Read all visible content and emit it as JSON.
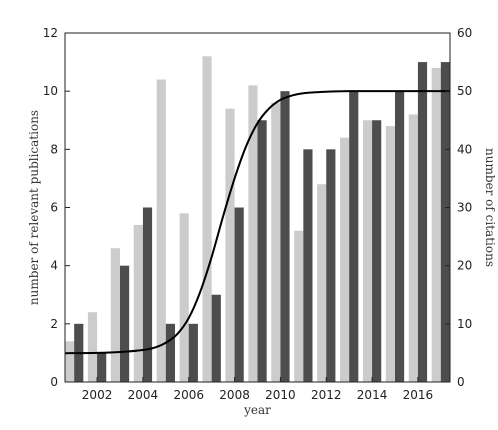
{
  "chart_data": {
    "type": "bar",
    "xlabel": "year",
    "ylabel_left": "number of relevant publications",
    "ylabel_right": "number of citations",
    "ylim_left": [
      0,
      12
    ],
    "ylim_right": [
      0,
      60
    ],
    "xlim": [
      2000.6,
      2017.4
    ],
    "left_ticks": [
      "0",
      "2",
      "4",
      "6",
      "8",
      "10",
      "12"
    ],
    "right_ticks": [
      "0",
      "10",
      "20",
      "30",
      "40",
      "50",
      "60"
    ],
    "x_ticks": [
      "2002",
      "2004",
      "2006",
      "2008",
      "2010",
      "2012",
      "2014",
      "2016"
    ],
    "grid": false,
    "legend": "none",
    "series": [
      {
        "axis": "right",
        "color": "#cccccc",
        "x": [
          2001,
          2002,
          2003,
          2004,
          2005,
          2006,
          2007,
          2008,
          2009,
          2010,
          2011,
          2012,
          2013,
          2014,
          2015,
          2016,
          2017
        ],
        "values": [
          7,
          12,
          23,
          27,
          52,
          29,
          56,
          47,
          51,
          48,
          26,
          34,
          42,
          45,
          44,
          46,
          54
        ]
      },
      {
        "axis": "left",
        "color": "#4d4d4d",
        "x": [
          2001,
          2002,
          2003,
          2004,
          2005,
          2006,
          2007,
          2008,
          2009,
          2010,
          2011,
          2012,
          2013,
          2014,
          2015,
          2016,
          2017
        ],
        "values": [
          2,
          1,
          4,
          6,
          2,
          2,
          3,
          6,
          9,
          10,
          8,
          8,
          10,
          9,
          10,
          11,
          11
        ]
      }
    ],
    "curve": {
      "axis": "left",
      "color": "#000000",
      "x": [
        2000.6,
        2002,
        2003,
        2004,
        2004.5,
        2005,
        2005.5,
        2006,
        2006.5,
        2007,
        2007.5,
        2008,
        2008.5,
        2009,
        2009.5,
        2010,
        2010.5,
        2011,
        2012,
        2013,
        2014,
        2015,
        2016,
        2017.4
      ],
      "values": [
        0.99,
        1.0,
        1.03,
        1.1,
        1.18,
        1.35,
        1.65,
        2.2,
        3.1,
        4.3,
        5.7,
        7.0,
        8.1,
        8.9,
        9.4,
        9.7,
        9.85,
        9.93,
        9.98,
        10.0,
        10.0,
        10.0,
        10.0,
        10.0
      ]
    }
  }
}
